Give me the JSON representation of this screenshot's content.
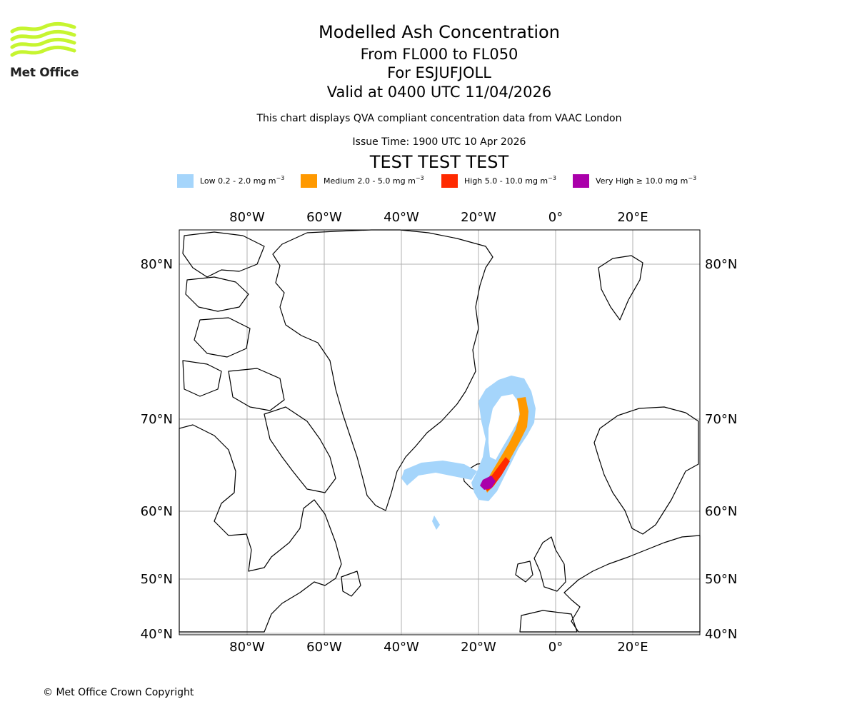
{
  "brand": {
    "logo_text": "Met Office"
  },
  "header": {
    "title": "Modelled Ash Concentration",
    "flight_levels": "From FL000 to FL050",
    "volcano": "For ESJUFJOLL",
    "valid_time": "Valid at 0400 UTC 11/04/2026",
    "description": "This chart displays QVA compliant concentration data from VAAC London",
    "issue_time": "Issue Time: 1900 UTC 10 Apr 2026",
    "test_banner": "TEST TEST TEST"
  },
  "legend": [
    {
      "label": "Low 0.2 - 2.0 mg m",
      "color": "#a5d5fb"
    },
    {
      "label": "Medium 2.0 - 5.0 mg m",
      "color": "#ff9900"
    },
    {
      "label": "High 5.0 - 10.0 mg m",
      "color": "#ff2a00"
    },
    {
      "label": "Very High ≥ 10.0 mg m",
      "color": "#aa00aa"
    }
  ],
  "legend_unit_exponent": "−3",
  "map": {
    "lon_labels": [
      "80°W",
      "60°W",
      "40°W",
      "20°W",
      "0°",
      "20°E"
    ],
    "lat_labels": [
      "80°N",
      "70°N",
      "60°N",
      "50°N",
      "40°N"
    ],
    "gridline_color": "#b0b0b0"
  },
  "footer": {
    "copyright": "© Met Office Crown Copyright"
  }
}
